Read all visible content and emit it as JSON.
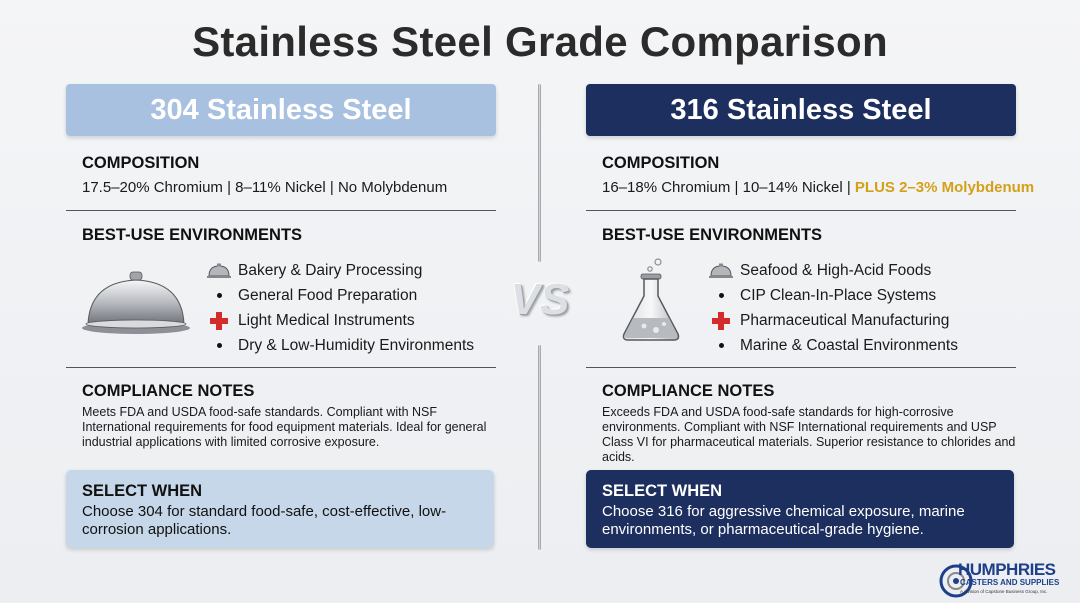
{
  "title": "Stainless Steel Grade Comparison",
  "vs": "VS",
  "left": {
    "header": "304 Stainless Steel",
    "composition_title": "COMPOSITION",
    "composition": "17.5–20% Chromium | 8–11% Nickel | No Molybdenum",
    "env_title": "BEST-USE ENVIRONMENTS",
    "env_items": [
      {
        "label": "Bakery & Dairy Processing",
        "icon": "cloche-icon"
      },
      {
        "label": "General Food Preparation",
        "icon": "bullet"
      },
      {
        "label": "Light Medical Instruments",
        "icon": "medical-cross-icon"
      },
      {
        "label": "Dry & Low-Humidity Environments",
        "icon": "bullet"
      }
    ],
    "big_icon": "cloche-icon",
    "notes_title": "COMPLIANCE NOTES",
    "notes": "Meets FDA and USDA food-safe standards. Compliant with NSF International requirements for food equipment materials. Ideal for general industrial applications with limited corrosive exposure.",
    "select_title": "SELECT WHEN",
    "select_text": "Choose 304 for standard food-safe, cost-effective, low-corrosion applications."
  },
  "right": {
    "header": "316 Stainless Steel",
    "composition_title": "COMPOSITION",
    "composition_main": "16–18% Chromium | 10–14% Nickel | ",
    "composition_highlight": "PLUS 2–3% Molybdenum",
    "env_title": "BEST-USE ENVIRONMENTS",
    "env_items": [
      {
        "label": "Seafood & High-Acid Foods",
        "icon": "cloche-icon"
      },
      {
        "label": "CIP Clean-In-Place Systems",
        "icon": "bullet"
      },
      {
        "label": "Pharmaceutical Manufacturing",
        "icon": "medical-cross-icon"
      },
      {
        "label": "Marine & Coastal Environments",
        "icon": "bullet"
      }
    ],
    "big_icon": "flask-icon",
    "notes_title": "COMPLIANCE NOTES",
    "notes": "Exceeds FDA and USDA food-safe standards for high-corrosive environments. Compliant with NSF International requirements and USP Class VI for pharmaceutical materials. Superior resistance to chlorides and acids.",
    "select_title": "SELECT WHEN",
    "select_text": "Choose 316 for aggressive chemical exposure, marine environments, or pharmaceutical-grade hygiene."
  },
  "logo": {
    "main": "HUMPHRIES",
    "sub": "CASTERS AND SUPPLIES",
    "tiny": "A division of Capstone Business Group, Inc."
  },
  "colors": {
    "left_header": "#a9c1e0",
    "right_header": "#1d2f5f",
    "highlight": "#d4a017",
    "cross": "#d42b2b"
  }
}
